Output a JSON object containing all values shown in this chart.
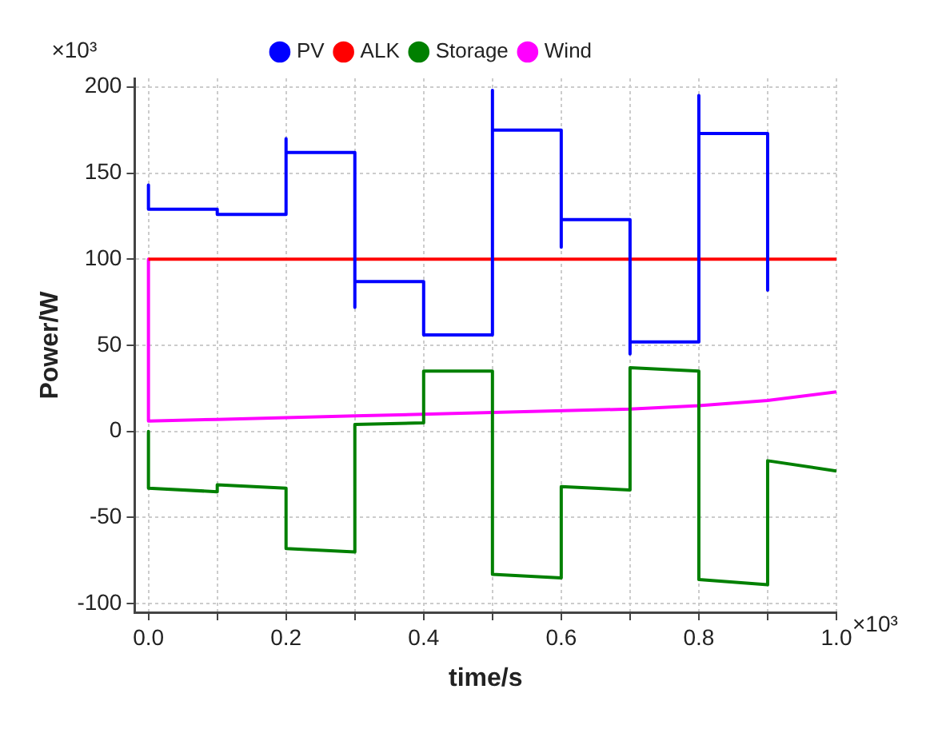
{
  "chart_data": {
    "type": "line",
    "xlabel": "time/s",
    "ylabel": "Power/W",
    "annotations": [
      "×10³",
      "×10³"
    ],
    "xlim": [
      -0.02,
      1.0
    ],
    "ylim": [
      -105,
      205
    ],
    "xticks": [
      {
        "value": 0,
        "label": "0.0"
      },
      {
        "value": 0.1,
        "label": null
      },
      {
        "value": 0.2,
        "label": "0.2"
      },
      {
        "value": 0.3,
        "label": null
      },
      {
        "value": 0.4,
        "label": "0.4"
      },
      {
        "value": 0.5,
        "label": null
      },
      {
        "value": 0.6,
        "label": "0.6"
      },
      {
        "value": 0.7,
        "label": null
      },
      {
        "value": 0.8,
        "label": "0.8"
      },
      {
        "value": 0.9,
        "label": null
      },
      {
        "value": 1.0,
        "label": "1.0"
      }
    ],
    "yticks": [
      -100,
      -50,
      0,
      50,
      100,
      150,
      200
    ],
    "grid": true,
    "legend": "top",
    "marker": "none",
    "line_style": "solid",
    "series": [
      {
        "name": "PV",
        "color": "#0000ff",
        "x": [
          0,
          0,
          0.1,
          0.1,
          0.2,
          0.2,
          0.2,
          0.3,
          0.3,
          0.3,
          0.4,
          0.4,
          0.5,
          0.5,
          0.5,
          0.6,
          0.6,
          0.6,
          0.7,
          0.7,
          0.7,
          0.8,
          0.8,
          0.8,
          0.9,
          0.9
        ],
        "values": [
          143,
          129,
          129,
          126,
          126,
          170,
          162,
          162,
          72,
          87,
          87,
          56,
          56,
          198,
          175,
          175,
          107,
          123,
          123,
          45,
          52,
          52,
          195,
          173,
          173,
          82
        ]
      },
      {
        "name": "ALK",
        "color": "#ff0000",
        "x": [
          0,
          1.0
        ],
        "values": [
          100,
          100
        ]
      },
      {
        "name": "Storage",
        "color": "#008000",
        "x": [
          0,
          0,
          0.1,
          0.1,
          0.2,
          0.2,
          0.3,
          0.3,
          0.4,
          0.4,
          0.5,
          0.5,
          0.6,
          0.6,
          0.7,
          0.7,
          0.8,
          0.8,
          0.9,
          0.9,
          1.0
        ],
        "values": [
          0,
          -33,
          -35,
          -31,
          -33,
          -68,
          -70,
          4,
          5,
          35,
          35,
          -83,
          -85,
          -32,
          -34,
          37,
          35,
          -86,
          -89,
          -17,
          -23
        ]
      },
      {
        "name": "Wind",
        "color": "#ff00ff",
        "x": [
          0,
          0,
          0.1,
          0.3,
          0.5,
          0.7,
          0.8,
          0.9,
          1.0
        ],
        "values": [
          100,
          6,
          7,
          9,
          11,
          13,
          15,
          18,
          23
        ]
      }
    ]
  }
}
